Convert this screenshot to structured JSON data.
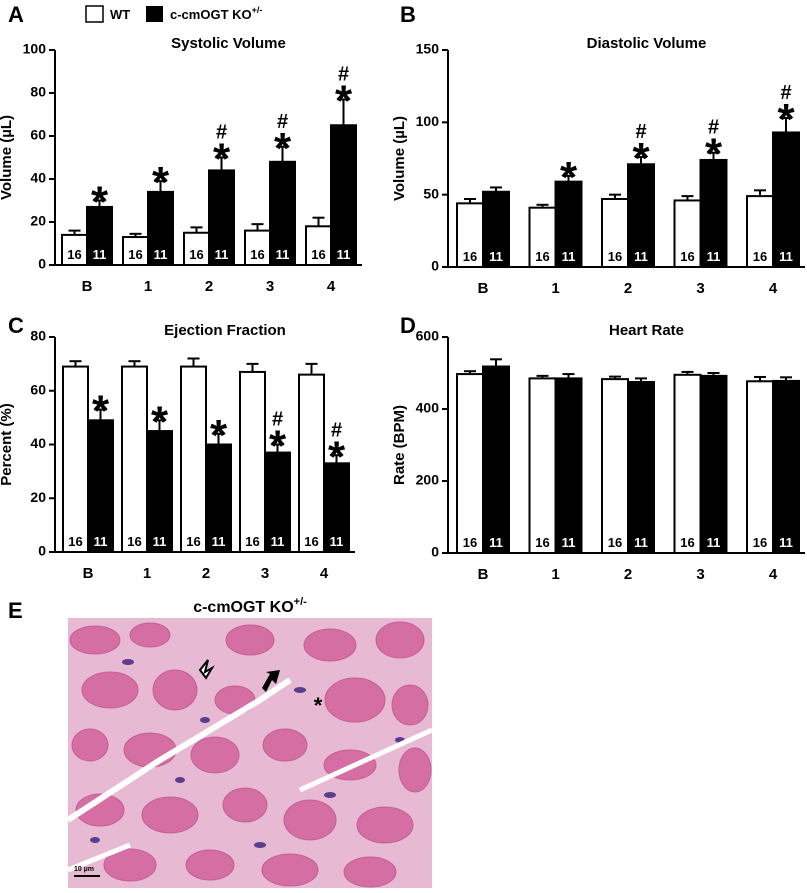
{
  "chart_data": [
    {
      "panel": "A",
      "type": "bar",
      "title": "Systolic Volume",
      "ylabel": "Volume (µL)",
      "categories": [
        "B",
        "1",
        "2",
        "3",
        "4"
      ],
      "ylim": [
        0,
        100
      ],
      "yticks": [
        0,
        20,
        40,
        60,
        80,
        100
      ],
      "series": [
        {
          "name": "WT",
          "color": "#ffffff",
          "values": [
            14,
            13,
            15,
            16,
            18
          ],
          "errors": [
            2,
            1.5,
            2.5,
            3,
            4
          ],
          "n": 16
        },
        {
          "name": "c-cmOGT KO",
          "name_superscript": "+/-",
          "color": "#000000",
          "values": [
            27,
            34,
            44,
            48,
            65
          ],
          "errors": [
            3,
            5,
            6,
            7,
            12
          ],
          "n": 11,
          "stars": [
            "*",
            "*",
            "*",
            "*",
            "*"
          ],
          "hashes": [
            null,
            null,
            "#",
            "#",
            "#"
          ]
        }
      ]
    },
    {
      "panel": "B",
      "type": "bar",
      "title": "Diastolic Volume",
      "ylabel": "Volume (µL)",
      "categories": [
        "B",
        "1",
        "2",
        "3",
        "4"
      ],
      "ylim": [
        0,
        150
      ],
      "yticks": [
        0,
        50,
        100,
        150
      ],
      "series": [
        {
          "color": "#ffffff",
          "values": [
            44,
            41,
            47,
            46,
            49
          ],
          "errors": [
            3,
            2,
            3,
            3,
            4
          ],
          "n": 16
        },
        {
          "color": "#000000",
          "values": [
            52,
            59,
            71,
            74,
            93
          ],
          "errors": [
            3,
            4,
            5,
            5,
            10
          ],
          "n": 11,
          "stars": [
            null,
            "*",
            "*",
            "*",
            "*"
          ],
          "hashes": [
            null,
            null,
            "#",
            "#",
            "#"
          ]
        }
      ]
    },
    {
      "panel": "C",
      "type": "bar",
      "title": "Ejection Fraction",
      "ylabel": "Percent (%)",
      "categories": [
        "B",
        "1",
        "2",
        "3",
        "4"
      ],
      "ylim": [
        0,
        80
      ],
      "yticks": [
        0,
        20,
        40,
        60,
        80
      ],
      "series": [
        {
          "color": "#ffffff",
          "values": [
            69,
            69,
            69,
            67,
            66
          ],
          "errors": [
            2,
            2,
            3,
            3,
            4
          ],
          "n": 16
        },
        {
          "color": "#000000",
          "values": [
            49,
            45,
            40,
            37,
            33
          ],
          "errors": [
            4,
            4,
            4,
            3,
            3
          ],
          "n": 11,
          "stars": [
            "*",
            "*",
            "*",
            "*",
            "*"
          ],
          "hashes": [
            null,
            null,
            null,
            "#",
            "#"
          ]
        }
      ]
    },
    {
      "panel": "D",
      "type": "bar",
      "title": "Heart Rate",
      "ylabel": "Rate (BPM)",
      "categories": [
        "B",
        "1",
        "2",
        "3",
        "4"
      ],
      "ylim": [
        0,
        600
      ],
      "yticks": [
        0,
        200,
        400,
        600
      ],
      "series": [
        {
          "color": "#ffffff",
          "values": [
            497,
            485,
            483,
            495,
            477
          ],
          "errors": [
            8,
            7,
            7,
            8,
            12
          ],
          "n": 16
        },
        {
          "color": "#000000",
          "values": [
            518,
            485,
            475,
            492,
            478
          ],
          "errors": [
            20,
            12,
            10,
            8,
            10
          ],
          "n": 11
        }
      ]
    }
  ],
  "image_panel": {
    "panel": "E",
    "title": "c-cmOGT KO",
    "title_superscript": "+/-",
    "marker": "*",
    "scale_bar": "10 µm"
  }
}
